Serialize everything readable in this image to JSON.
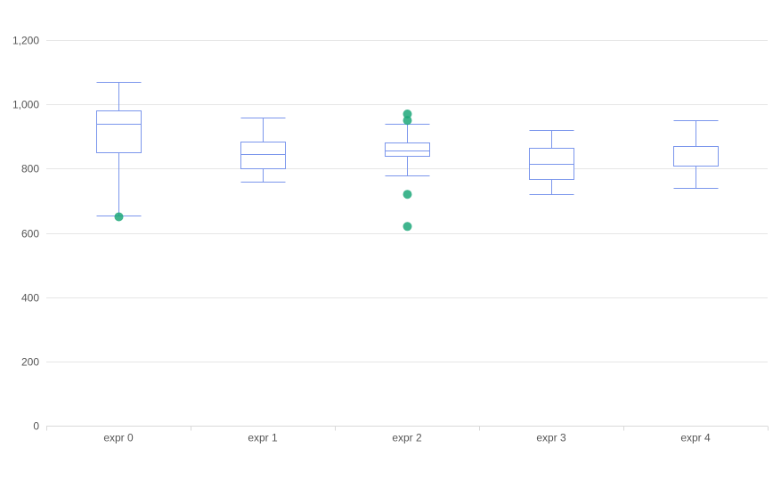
{
  "chart_data": {
    "type": "boxplot",
    "title": "",
    "xlabel": "",
    "ylabel": "",
    "ylim": [
      0,
      1200
    ],
    "yticks": [
      0,
      200,
      400,
      600,
      800,
      1000,
      1200
    ],
    "ytick_labels": [
      "0",
      "200",
      "400",
      "600",
      "800",
      "1,000",
      "1,200"
    ],
    "grid": true,
    "legend": "none",
    "colors": {
      "box": "#7b96ec",
      "outlier": "#1fa87a",
      "grid": "#e6e6e6",
      "axis": "#d9d9d9",
      "text": "#555555"
    },
    "categories": [
      "expr 0",
      "expr 1",
      "expr 2",
      "expr 3",
      "expr 4"
    ],
    "boxes": [
      {
        "min": 655,
        "q1": 850,
        "median": 940,
        "q3": 980,
        "max": 1070,
        "outliers": [
          650
        ]
      },
      {
        "min": 760,
        "q1": 800,
        "median": 845,
        "q3": 885,
        "max": 960,
        "outliers": []
      },
      {
        "min": 780,
        "q1": 840,
        "median": 855,
        "q3": 880,
        "max": 940,
        "outliers": [
          970,
          950,
          720,
          620
        ]
      },
      {
        "min": 720,
        "q1": 768,
        "median": 815,
        "q3": 865,
        "max": 920,
        "outliers": []
      },
      {
        "min": 740,
        "q1": 810,
        "median": 810,
        "q3": 870,
        "max": 950,
        "outliers": []
      }
    ]
  }
}
